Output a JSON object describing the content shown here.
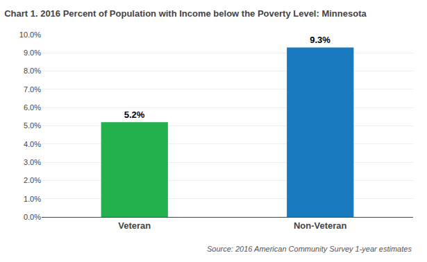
{
  "chart_data": {
    "type": "bar",
    "title": "Chart 1. 2016 Percent of Population with Income below the Poverty Level: Minnesota",
    "categories": [
      "Veteran",
      "Non-Veteran"
    ],
    "values": [
      5.2,
      9.3
    ],
    "value_labels": [
      "5.2%",
      "9.3%"
    ],
    "colors": [
      "#22b14c",
      "#1a7abf"
    ],
    "data_labels": true,
    "ylim": [
      0,
      10.0
    ],
    "yticks": [
      {
        "value": 0.0,
        "label": "0.0%"
      },
      {
        "value": 1.0,
        "label": "1.0%"
      },
      {
        "value": 2.0,
        "label": "2.0%"
      },
      {
        "value": 3.0,
        "label": "3.0%"
      },
      {
        "value": 4.0,
        "label": "4.0%"
      },
      {
        "value": 5.0,
        "label": "5.0%"
      },
      {
        "value": 6.0,
        "label": "6.0%"
      },
      {
        "value": 7.0,
        "label": "7.0%"
      },
      {
        "value": 8.0,
        "label": "8.0%"
      },
      {
        "value": 9.0,
        "label": "9.0%"
      },
      {
        "value": 10.0,
        "label": "10.0%"
      }
    ],
    "grid": true,
    "annotations": [
      "Source: 2016 American Community Survey 1-year estimates"
    ]
  }
}
